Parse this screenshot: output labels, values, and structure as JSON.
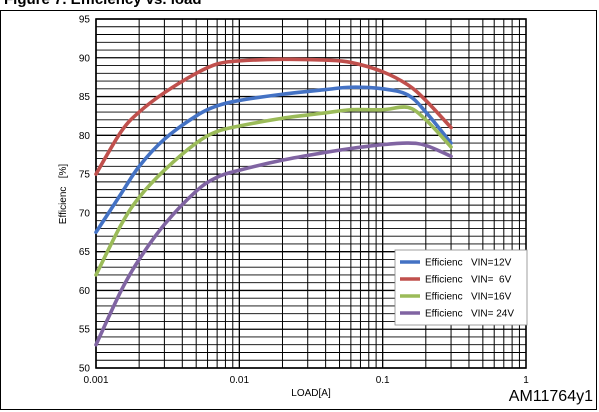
{
  "figure": {
    "title": "Figure 7. Efficiency vs. load",
    "figure_id": "AM11764y1"
  },
  "chart_data": {
    "type": "line",
    "xlabel": "LOAD[A]",
    "ylabel": "Efficienc   [%]",
    "x_scale": "log",
    "xlim": [
      0.001,
      1
    ],
    "ylim": [
      50,
      95
    ],
    "x_ticks": [
      "0.001",
      "0.01",
      "0.1",
      "1"
    ],
    "y_ticks": [
      "50",
      "55",
      "60",
      "65",
      "70",
      "75",
      "80",
      "85",
      "90",
      "95"
    ],
    "grid": true,
    "legend_position": "bottom-right",
    "series": [
      {
        "name": "Efficienc   VIN=12V",
        "color": "#4472c4",
        "x": [
          0.001,
          0.0015,
          0.002,
          0.003,
          0.005,
          0.007,
          0.01,
          0.02,
          0.04,
          0.06,
          0.1,
          0.15,
          0.2,
          0.3
        ],
        "y": [
          67.5,
          72.5,
          76,
          79.5,
          82.5,
          83.8,
          84.5,
          85.3,
          85.9,
          86.2,
          86,
          85.2,
          83,
          79
        ]
      },
      {
        "name": "Efficienc   VIN=  6V",
        "color": "#c0504d",
        "x": [
          0.001,
          0.0015,
          0.002,
          0.003,
          0.005,
          0.007,
          0.01,
          0.02,
          0.04,
          0.06,
          0.1,
          0.15,
          0.2,
          0.3
        ],
        "y": [
          75,
          80.5,
          83,
          85.5,
          88,
          89.2,
          89.6,
          89.8,
          89.7,
          89.4,
          88.2,
          86.5,
          84.5,
          81
        ]
      },
      {
        "name": "Efficienc   VIN=16V",
        "color": "#9bbb59",
        "x": [
          0.001,
          0.0015,
          0.002,
          0.003,
          0.005,
          0.007,
          0.01,
          0.02,
          0.04,
          0.06,
          0.1,
          0.15,
          0.2,
          0.3
        ],
        "y": [
          62,
          68.5,
          72,
          75.5,
          79,
          80.5,
          81.2,
          82.2,
          82.9,
          83.3,
          83.3,
          83.6,
          82,
          78.5
        ]
      },
      {
        "name": "Efficienc   VIN= 24V",
        "color": "#8064a2",
        "x": [
          0.001,
          0.0015,
          0.002,
          0.003,
          0.005,
          0.007,
          0.01,
          0.02,
          0.04,
          0.06,
          0.1,
          0.15,
          0.2,
          0.3
        ],
        "y": [
          53,
          60,
          64,
          68.5,
          72.8,
          74.6,
          75.5,
          76.8,
          77.8,
          78.3,
          78.8,
          79,
          78.7,
          77.3
        ]
      }
    ]
  }
}
